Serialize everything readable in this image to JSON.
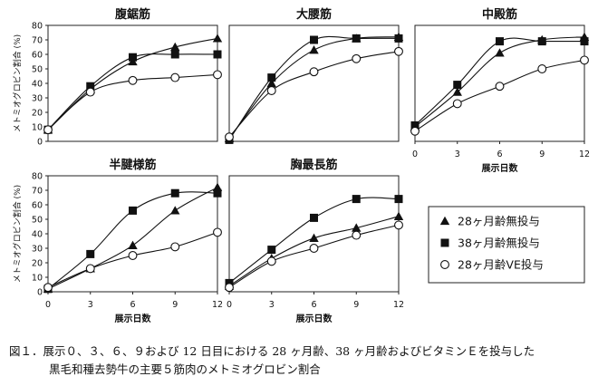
{
  "chart_data": [
    {
      "type": "line",
      "title": "腹鋸筋",
      "ylabel": "メトミオグロビン割合 (%)",
      "xlabel": "",
      "x": [
        0,
        3,
        6,
        9,
        12
      ],
      "xticks": [],
      "yticks": [
        "0",
        "10",
        "20",
        "30",
        "40",
        "50",
        "60",
        "70",
        "80"
      ],
      "ylim": [
        0,
        80
      ],
      "grid": false,
      "series": [
        {
          "name": "28ヶ月齢無投与",
          "marker": "triangle",
          "values": [
            8,
            36,
            55,
            65,
            71
          ]
        },
        {
          "name": "38ヶ月齢無投与",
          "marker": "square",
          "values": [
            8,
            38,
            58,
            60,
            60
          ]
        },
        {
          "name": "28ヶ月齢VE投与",
          "marker": "circle",
          "values": [
            8,
            34,
            42,
            44,
            46
          ]
        }
      ]
    },
    {
      "type": "line",
      "title": "大腰筋",
      "ylabel": "",
      "xlabel": "",
      "x": [
        0,
        3,
        6,
        9,
        12
      ],
      "xticks": [],
      "yticks": [],
      "ylim": [
        0,
        80
      ],
      "grid": false,
      "series": [
        {
          "name": "28ヶ月齢無投与",
          "marker": "triangle",
          "values": [
            2,
            40,
            63,
            71,
            72
          ]
        },
        {
          "name": "38ヶ月齢無投与",
          "marker": "square",
          "values": [
            1,
            44,
            70,
            71,
            71
          ]
        },
        {
          "name": "28ヶ月齢VE投与",
          "marker": "circle",
          "values": [
            3,
            35,
            48,
            57,
            62
          ]
        }
      ]
    },
    {
      "type": "line",
      "title": "中殿筋",
      "ylabel": "",
      "xlabel": "展示日数",
      "x": [
        0,
        3,
        6,
        9,
        12
      ],
      "xticks": [
        "0",
        "3",
        "6",
        "9",
        "12"
      ],
      "yticks": [],
      "ylim": [
        0,
        80
      ],
      "grid": false,
      "series": [
        {
          "name": "28ヶ月齢無投与",
          "marker": "triangle",
          "values": [
            10,
            34,
            61,
            70,
            72
          ]
        },
        {
          "name": "38ヶ月齢無投与",
          "marker": "square",
          "values": [
            11,
            39,
            69,
            69,
            69
          ]
        },
        {
          "name": "28ヶ月齢VE投与",
          "marker": "circle",
          "values": [
            7,
            26,
            38,
            50,
            56
          ]
        }
      ]
    },
    {
      "type": "line",
      "title": "半腱様筋",
      "ylabel": "メトミオグロビン割合 (%)",
      "xlabel": "展示日数",
      "x": [
        0,
        3,
        6,
        9,
        12
      ],
      "xticks": [
        "0",
        "3",
        "6",
        "9",
        "12"
      ],
      "yticks": [
        "0",
        "10",
        "20",
        "30",
        "40",
        "50",
        "60",
        "70",
        "80"
      ],
      "ylim": [
        0,
        80
      ],
      "grid": false,
      "series": [
        {
          "name": "28ヶ月齢無投与",
          "marker": "triangle",
          "values": [
            2,
            16,
            32,
            56,
            72
          ]
        },
        {
          "name": "38ヶ月齢無投与",
          "marker": "square",
          "values": [
            2,
            26,
            56,
            68,
            68
          ]
        },
        {
          "name": "28ヶ月齢VE投与",
          "marker": "circle",
          "values": [
            3,
            16,
            25,
            31,
            41
          ]
        }
      ]
    },
    {
      "type": "line",
      "title": "胸最長筋",
      "ylabel": "",
      "xlabel": "展示日数",
      "x": [
        0,
        3,
        6,
        9,
        12
      ],
      "xticks": [
        "0",
        "3",
        "6",
        "9",
        "12"
      ],
      "yticks": [],
      "ylim": [
        0,
        80
      ],
      "grid": false,
      "series": [
        {
          "name": "28ヶ月齢無投与",
          "marker": "triangle",
          "values": [
            4,
            23,
            37,
            44,
            52
          ]
        },
        {
          "name": "38ヶ月齢無投与",
          "marker": "square",
          "values": [
            6,
            29,
            51,
            64,
            64
          ]
        },
        {
          "name": "28ヶ月齢VE投与",
          "marker": "circle",
          "values": [
            3,
            21,
            30,
            39,
            46
          ]
        }
      ]
    }
  ],
  "legend": [
    {
      "label": "28ヶ月齢無投与",
      "marker": "triangle"
    },
    {
      "label": "38ヶ月齢無投与",
      "marker": "square"
    },
    {
      "label": "28ヶ月齢VE投与",
      "marker": "circle"
    }
  ],
  "caption": {
    "line1": "図１．展示０、３、６、９および 12 日目における 28 ヶ月齢、38 ヶ月齢およびビタミンＥを投与した",
    "line2": "黒毛和種去勢牛の主要５筋肉のメトミオグロビン割合"
  }
}
